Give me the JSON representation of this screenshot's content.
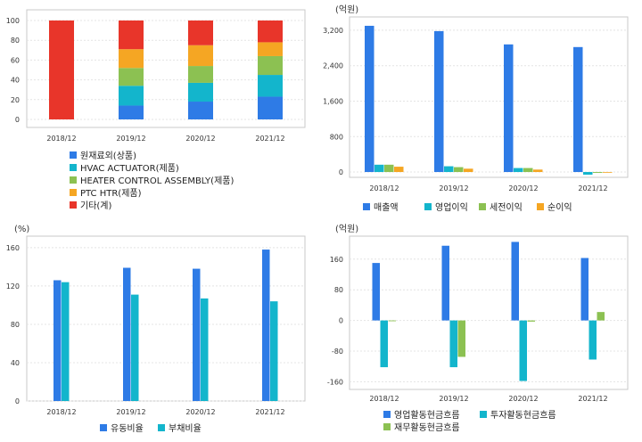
{
  "colors": {
    "blue": "#2e7be6",
    "cyan": "#13b5cc",
    "green": "#8cc152",
    "orange": "#f5a623",
    "red": "#e8352a"
  },
  "chart_data": [
    {
      "type": "bar",
      "stacked": true,
      "categories": [
        "2018/12",
        "2019/12",
        "2020/12",
        "2021/12"
      ],
      "series": [
        {
          "name": "원재료외(상품)",
          "color": "blue",
          "values": [
            0,
            14,
            18,
            23
          ]
        },
        {
          "name": "HVAC ACTUATOR(제품)",
          "color": "cyan",
          "values": [
            0,
            20,
            19,
            22
          ]
        },
        {
          "name": "HEATER CONTROL ASSEMBLY(제품)",
          "color": "green",
          "values": [
            0,
            18,
            17,
            19
          ]
        },
        {
          "name": "PTC HTR(제품)",
          "color": "orange",
          "values": [
            0,
            19,
            21,
            14
          ]
        },
        {
          "name": "기타(계)",
          "color": "red",
          "values": [
            100,
            29,
            25,
            22
          ]
        }
      ],
      "yticks": [
        0,
        20,
        40,
        60,
        80,
        100
      ],
      "ylim": [
        0,
        100
      ],
      "unit": "",
      "legend": "bottom"
    },
    {
      "type": "bar",
      "categories": [
        "2018/12",
        "2019/12",
        "2020/12",
        "2021/12"
      ],
      "series": [
        {
          "name": "매출액",
          "color": "blue",
          "values": [
            3300,
            3180,
            2880,
            2820
          ]
        },
        {
          "name": "영업이익",
          "color": "cyan",
          "values": [
            165,
            130,
            90,
            -60
          ]
        },
        {
          "name": "세전이익",
          "color": "green",
          "values": [
            165,
            110,
            90,
            -20
          ]
        },
        {
          "name": "순이익",
          "color": "orange",
          "values": [
            120,
            75,
            55,
            -10
          ]
        }
      ],
      "yticks": [
        0,
        800,
        1600,
        2400,
        3200
      ],
      "ylim": [
        -120,
        3500
      ],
      "unit": "(억원)",
      "legend": "bottom"
    },
    {
      "type": "bar",
      "categories": [
        "2018/12",
        "2019/12",
        "2020/12",
        "2021/12"
      ],
      "series": [
        {
          "name": "유동비율",
          "color": "blue",
          "values": [
            126,
            139,
            138,
            158
          ]
        },
        {
          "name": "부채비율",
          "color": "cyan",
          "values": [
            124,
            111,
            107,
            104
          ]
        }
      ],
      "yticks": [
        0,
        40,
        80,
        120,
        160
      ],
      "ylim": [
        0,
        172
      ],
      "unit": "(%)",
      "legend": "bottom"
    },
    {
      "type": "bar",
      "categories": [
        "2018/12",
        "2019/12",
        "2020/12",
        "2021/12"
      ],
      "series": [
        {
          "name": "영업활동현금흐름",
          "color": "blue",
          "values": [
            150,
            195,
            205,
            163
          ]
        },
        {
          "name": "투자활동현금흐름",
          "color": "cyan",
          "values": [
            -122,
            -122,
            -158,
            -102
          ]
        },
        {
          "name": "재무활동현금흐름",
          "color": "green",
          "values": [
            -2,
            -95,
            -3,
            22
          ]
        }
      ],
      "yticks": [
        -160,
        -80,
        0,
        80,
        160
      ],
      "ylim": [
        -180,
        220
      ],
      "unit": "(억원)",
      "legend": "bottom"
    }
  ]
}
